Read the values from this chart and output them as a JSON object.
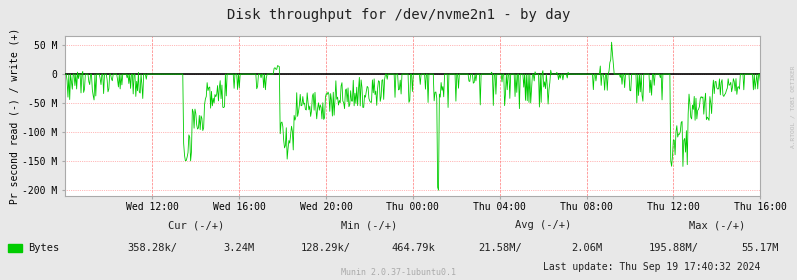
{
  "title": "Disk throughput for /dev/nvme2n1 - by day",
  "ylabel": "Pr second read (-) / write (+)",
  "background_color": "#e8e8e8",
  "plot_bg_color": "#ffffff",
  "grid_color_minor": "#ff9999",
  "line_color": "#00cc00",
  "zero_line_color": "#000000",
  "border_color": "#aaaaaa",
  "ylim": [
    -210,
    65
  ],
  "yticks": [
    -200,
    -150,
    -100,
    -50,
    0,
    50
  ],
  "ytick_labels": [
    "-200 M",
    "-150 M",
    "-100 M",
    "-50 M",
    "0",
    "50 M"
  ],
  "xlabel_ticks": [
    "Wed 12:00",
    "Wed 16:00",
    "Wed 20:00",
    "Thu 00:00",
    "Thu 04:00",
    "Thu 08:00",
    "Thu 12:00",
    "Thu 16:00"
  ],
  "watermark": "A.RTOOL / TOBI OETIKER",
  "footer_left": "Munin 2.0.37-1ubuntu0.1",
  "legend_label": "Bytes",
  "legend_cur_hdr": "Cur (-/+)",
  "legend_min_hdr": "Min (-/+)",
  "legend_avg_hdr": "Avg (-/+)",
  "legend_max_hdr": "Max (-/+)",
  "legend_cur_val1": "358.28k/",
  "legend_cur_val2": "3.24M",
  "legend_min_val1": "128.29k/",
  "legend_min_val2": "464.79k",
  "legend_avg_val1": "21.58M/",
  "legend_avg_val2": "2.06M",
  "legend_max_val1": "195.88M/",
  "legend_max_val2": "55.17M",
  "last_update": "Last update: Thu Sep 19 17:40:32 2024"
}
